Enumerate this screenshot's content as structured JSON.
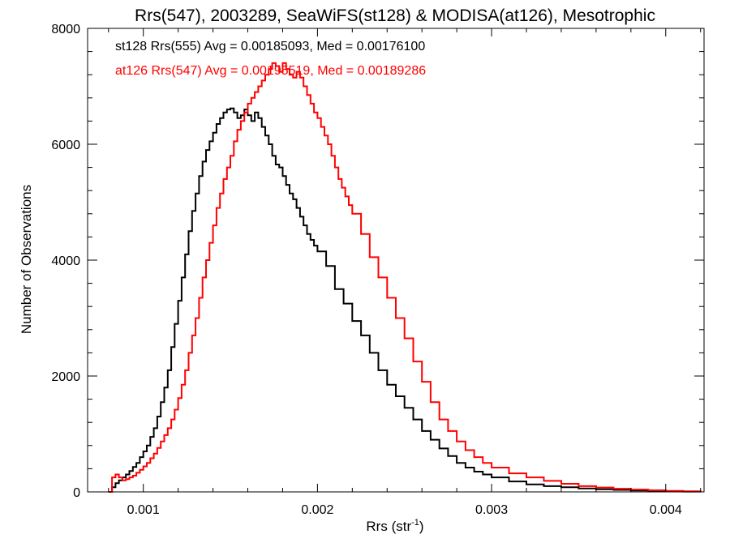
{
  "chart_data": {
    "type": "histogram-step",
    "title": "Rrs(547), 2003289, SeaWiFS(st128) & MODISA(at126), Mesotrophic",
    "xlabel_main": "Rrs (str",
    "xlabel_sup": "-1",
    "xlabel_close": ")",
    "ylabel": "Number of Observations",
    "xlim": [
      0.00068,
      0.00422
    ],
    "ylim": [
      0,
      8000
    ],
    "xticks": [
      0.001,
      0.002,
      0.003,
      0.004
    ],
    "xtick_labels": [
      "0.001",
      "0.002",
      "0.003",
      "0.004"
    ],
    "yticks": [
      0,
      2000,
      4000,
      6000,
      8000
    ],
    "ytick_labels": [
      "0",
      "2000",
      "4000",
      "6000",
      "8000"
    ],
    "grid": false,
    "legend_position": "top-left",
    "series": [
      {
        "label": "st128 Rrs(555) Avg = 0.00185093, Med = 0.00176100",
        "color": "#000000",
        "x": [
          0.0008,
          0.00082,
          0.00084,
          0.00086,
          0.00088,
          0.0009,
          0.00092,
          0.00094,
          0.00096,
          0.00098,
          0.001,
          0.00102,
          0.00104,
          0.00106,
          0.00108,
          0.0011,
          0.00112,
          0.00114,
          0.00116,
          0.00118,
          0.0012,
          0.00122,
          0.00124,
          0.00126,
          0.00128,
          0.0013,
          0.00132,
          0.00134,
          0.00136,
          0.00138,
          0.0014,
          0.00142,
          0.00144,
          0.00146,
          0.00148,
          0.0015,
          0.00152,
          0.00154,
          0.00156,
          0.00158,
          0.0016,
          0.00162,
          0.00164,
          0.00166,
          0.00168,
          0.0017,
          0.00172,
          0.00174,
          0.00176,
          0.00178,
          0.0018,
          0.00182,
          0.00184,
          0.00186,
          0.00188,
          0.0019,
          0.00192,
          0.00194,
          0.00196,
          0.00198,
          0.002,
          0.00205,
          0.0021,
          0.00215,
          0.0022,
          0.00225,
          0.0023,
          0.00235,
          0.0024,
          0.00245,
          0.0025,
          0.00255,
          0.0026,
          0.00265,
          0.0027,
          0.00275,
          0.0028,
          0.00285,
          0.0029,
          0.00295,
          0.003,
          0.0031,
          0.0032,
          0.0033,
          0.0034,
          0.0035,
          0.0036,
          0.0037,
          0.0038,
          0.0039,
          0.004,
          0.0041,
          0.0042
        ],
        "y": [
          0,
          80,
          150,
          200,
          250,
          300,
          360,
          430,
          500,
          600,
          700,
          800,
          950,
          1100,
          1300,
          1550,
          1800,
          2100,
          2500,
          2900,
          3300,
          3700,
          4100,
          4500,
          4850,
          5150,
          5450,
          5700,
          5900,
          6050,
          6200,
          6350,
          6450,
          6550,
          6600,
          6620,
          6550,
          6450,
          6500,
          6600,
          6500,
          6400,
          6550,
          6450,
          6300,
          6150,
          6000,
          5800,
          5650,
          5600,
          5450,
          5300,
          5150,
          5050,
          4900,
          4750,
          4600,
          4450,
          4350,
          4250,
          4150,
          3900,
          3500,
          3250,
          2950,
          2700,
          2400,
          2100,
          1850,
          1650,
          1450,
          1250,
          1050,
          900,
          750,
          620,
          500,
          420,
          350,
          300,
          250,
          180,
          130,
          100,
          80,
          60,
          45,
          35,
          25,
          18,
          10,
          5,
          0
        ]
      },
      {
        "label": "at126 Rrs(547) Avg = 0.00195519, Med = 0.00189286",
        "color": "#ff0000",
        "x": [
          0.0008,
          0.00082,
          0.00084,
          0.00086,
          0.00088,
          0.0009,
          0.00092,
          0.00094,
          0.00096,
          0.00098,
          0.001,
          0.00102,
          0.00104,
          0.00106,
          0.00108,
          0.0011,
          0.00112,
          0.00114,
          0.00116,
          0.00118,
          0.0012,
          0.00122,
          0.00124,
          0.00126,
          0.00128,
          0.0013,
          0.00132,
          0.00134,
          0.00136,
          0.00138,
          0.0014,
          0.00142,
          0.00144,
          0.00146,
          0.00148,
          0.0015,
          0.00152,
          0.00154,
          0.00156,
          0.00158,
          0.0016,
          0.00162,
          0.00164,
          0.00166,
          0.00168,
          0.0017,
          0.00172,
          0.00174,
          0.00176,
          0.00178,
          0.0018,
          0.00182,
          0.00184,
          0.00186,
          0.00188,
          0.0019,
          0.00192,
          0.00194,
          0.00196,
          0.00198,
          0.002,
          0.00202,
          0.00204,
          0.00206,
          0.00208,
          0.0021,
          0.00212,
          0.00214,
          0.00216,
          0.00218,
          0.0022,
          0.00225,
          0.0023,
          0.00235,
          0.0024,
          0.00245,
          0.0025,
          0.00255,
          0.0026,
          0.00265,
          0.0027,
          0.00275,
          0.0028,
          0.00285,
          0.0029,
          0.00295,
          0.003,
          0.0031,
          0.0032,
          0.0033,
          0.0034,
          0.0035,
          0.0036,
          0.0037,
          0.0038,
          0.0039,
          0.004,
          0.0041,
          0.0042
        ],
        "y": [
          0,
          250,
          300,
          250,
          200,
          220,
          250,
          280,
          330,
          380,
          440,
          500,
          580,
          660,
          760,
          870,
          980,
          1100,
          1250,
          1420,
          1620,
          1850,
          2100,
          2400,
          2700,
          3000,
          3350,
          3700,
          4000,
          4300,
          4600,
          4900,
          5150,
          5400,
          5600,
          5800,
          6050,
          6250,
          6400,
          6550,
          6700,
          6800,
          6900,
          7000,
          7100,
          7200,
          7300,
          7400,
          7350,
          7250,
          7400,
          7300,
          7200,
          7150,
          7250,
          7150,
          7000,
          6850,
          6700,
          6550,
          6450,
          6300,
          6150,
          6000,
          5800,
          5600,
          5400,
          5250,
          5100,
          4950,
          4800,
          4450,
          4050,
          3700,
          3350,
          3000,
          2650,
          2250,
          1900,
          1550,
          1250,
          1050,
          870,
          720,
          600,
          500,
          420,
          320,
          250,
          190,
          140,
          100,
          75,
          55,
          40,
          28,
          18,
          10,
          0
        ]
      }
    ]
  }
}
